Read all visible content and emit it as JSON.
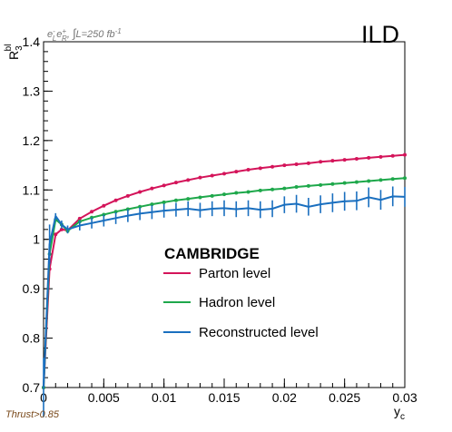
{
  "chart_data": {
    "type": "line",
    "experiment_label": "ILD",
    "process_label_parts": {
      "beam1": "e",
      "beam1_sub": "L",
      "beam1_sup": "-",
      "beam2": "e",
      "beam2_sub": "R",
      "beam2_sup": "+",
      "separator": ", ",
      "integral": "∫",
      "lumi": "L=250 fb",
      "lumi_sup": "-1"
    },
    "cut_label": "Thrust>0.85",
    "ylabel": {
      "main": "R",
      "sub": "3",
      "sup": "bl"
    },
    "xlabel": {
      "main": "y",
      "sub": "c"
    },
    "xlim": [
      0,
      0.03
    ],
    "ylim": [
      0.7,
      1.4
    ],
    "xticks": [
      "0",
      "0.005",
      "0.01",
      "0.015",
      "0.02",
      "0.025",
      "0.03"
    ],
    "yticks": [
      "0.7",
      "0.8",
      "0.9",
      "1",
      "1.1",
      "1.2",
      "1.3",
      "1.4"
    ],
    "legend": {
      "title": "CAMBRIDGE",
      "position": "center"
    },
    "series": [
      {
        "name": "Parton level",
        "color": "#d4145a",
        "x": [
          0,
          0.0005,
          0.001,
          0.0015,
          0.002,
          0.003,
          0.004,
          0.005,
          0.006,
          0.007,
          0.008,
          0.009,
          0.01,
          0.011,
          0.012,
          0.013,
          0.014,
          0.015,
          0.016,
          0.017,
          0.018,
          0.019,
          0.02,
          0.021,
          0.022,
          0.023,
          0.024,
          0.025,
          0.026,
          0.027,
          0.028,
          0.029,
          0.03
        ],
        "y": [
          0.7,
          0.94,
          1.01,
          1.02,
          1.018,
          1.042,
          1.056,
          1.068,
          1.079,
          1.088,
          1.096,
          1.103,
          1.109,
          1.115,
          1.12,
          1.125,
          1.129,
          1.133,
          1.137,
          1.141,
          1.144,
          1.147,
          1.15,
          1.152,
          1.154,
          1.157,
          1.159,
          1.161,
          1.163,
          1.165,
          1.167,
          1.169,
          1.171
        ]
      },
      {
        "name": "Hadron level",
        "color": "#1ea84b",
        "x": [
          0,
          0.0005,
          0.001,
          0.0015,
          0.002,
          0.003,
          0.004,
          0.005,
          0.006,
          0.007,
          0.008,
          0.009,
          0.01,
          0.011,
          0.012,
          0.013,
          0.014,
          0.015,
          0.016,
          0.017,
          0.018,
          0.019,
          0.02,
          0.021,
          0.022,
          0.023,
          0.024,
          0.025,
          0.026,
          0.027,
          0.028,
          0.029,
          0.03
        ],
        "y": [
          0.7,
          0.97,
          1.04,
          1.03,
          1.017,
          1.036,
          1.044,
          1.05,
          1.056,
          1.061,
          1.066,
          1.071,
          1.075,
          1.079,
          1.082,
          1.085,
          1.088,
          1.091,
          1.094,
          1.096,
          1.099,
          1.101,
          1.103,
          1.106,
          1.108,
          1.11,
          1.112,
          1.114,
          1.116,
          1.118,
          1.12,
          1.122,
          1.124
        ]
      },
      {
        "name": "Reconstructed level",
        "color": "#1a6fbf",
        "x": [
          0,
          0.0005,
          0.001,
          0.0015,
          0.002,
          0.003,
          0.004,
          0.005,
          0.006,
          0.007,
          0.008,
          0.009,
          0.01,
          0.011,
          0.012,
          0.013,
          0.014,
          0.015,
          0.016,
          0.017,
          0.018,
          0.019,
          0.02,
          0.021,
          0.022,
          0.023,
          0.024,
          0.025,
          0.026,
          0.027,
          0.028,
          0.029,
          0.03
        ],
        "y": [
          0.7,
          0.99,
          1.047,
          1.03,
          1.02,
          1.028,
          1.033,
          1.038,
          1.043,
          1.048,
          1.052,
          1.055,
          1.058,
          1.06,
          1.062,
          1.059,
          1.062,
          1.063,
          1.061,
          1.063,
          1.06,
          1.062,
          1.07,
          1.072,
          1.066,
          1.071,
          1.074,
          1.077,
          1.078,
          1.085,
          1.08,
          1.087,
          1.086
        ],
        "err": [
          0.06,
          0.04,
          0.006,
          0.008,
          0.008,
          0.01,
          0.011,
          0.012,
          0.012,
          0.013,
          0.013,
          0.014,
          0.014,
          0.014,
          0.015,
          0.015,
          0.015,
          0.016,
          0.016,
          0.016,
          0.017,
          0.017,
          0.017,
          0.018,
          0.018,
          0.018,
          0.019,
          0.019,
          0.019,
          0.02,
          0.02,
          0.02,
          0.02
        ]
      }
    ]
  }
}
